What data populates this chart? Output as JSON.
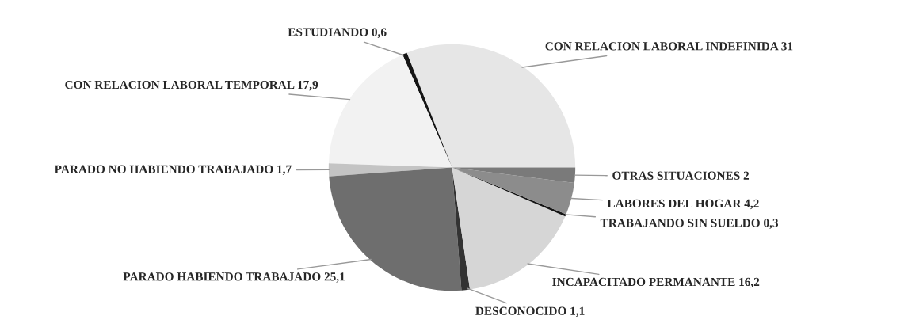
{
  "chart_data": {
    "type": "pie",
    "categories": [
      "CON RELACION LABORAL INDEFINIDA",
      "ESTUDIANDO",
      "CON RELACION LABORAL TEMPORAL",
      "PARADO NO HABIENDO TRABAJADO",
      "PARADO HABIENDO TRABAJADO",
      "DESCONOCIDO",
      "INCAPACITADO PERMANANTE",
      "TRABAJANDO SIN SUELDO",
      "LABORES DEL HOGAR",
      "OTRAS SITUACIONES"
    ],
    "values": [
      31,
      0.6,
      17.9,
      1.7,
      25.1,
      1.1,
      16.2,
      0.3,
      4.2,
      2
    ],
    "value_labels": [
      "31",
      "0,6",
      "17,9",
      "1,7",
      "25,1",
      "1,1",
      "16,2",
      "0,3",
      "4,2",
      "2"
    ],
    "colors": [
      "#e6e6e6",
      "#151515",
      "#f2f2f2",
      "#c4c4c4",
      "#6e6e6e",
      "#333333",
      "#d6d6d6",
      "#151515",
      "#8c8c8c",
      "#7a7a7a"
    ]
  }
}
